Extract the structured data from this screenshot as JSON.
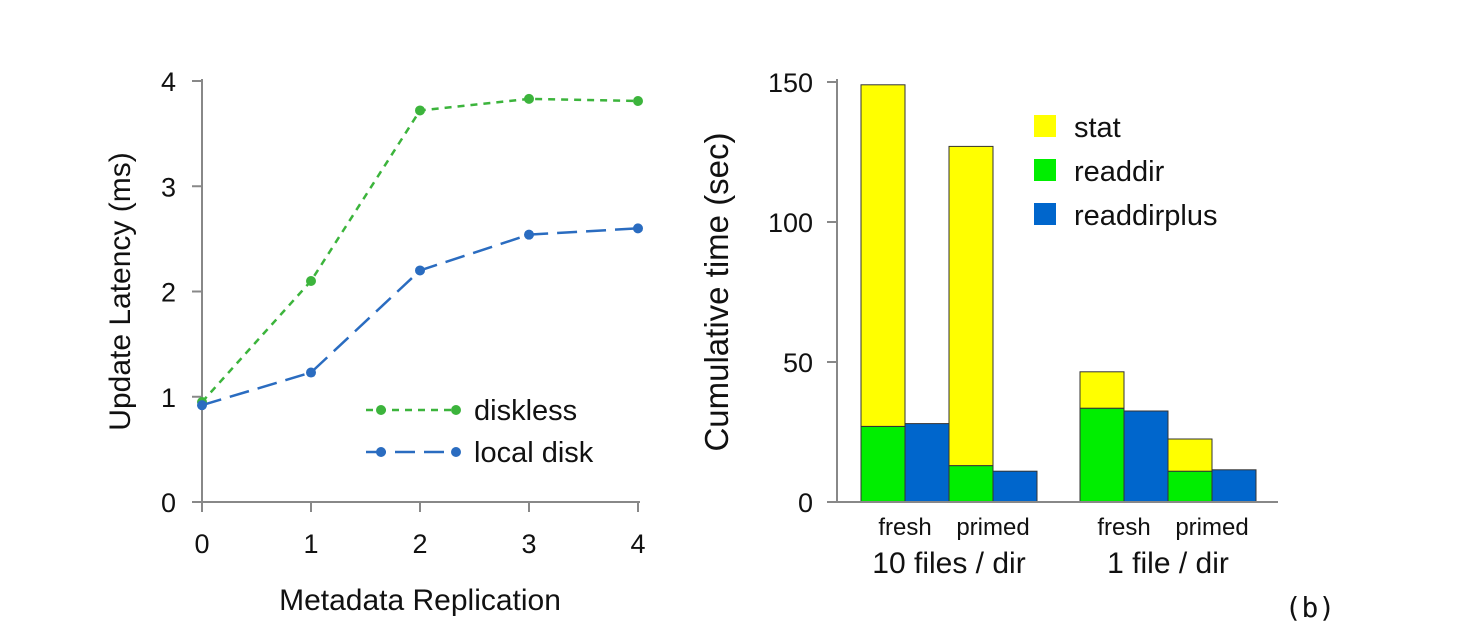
{
  "panel_label": "(b)",
  "chart_data": [
    {
      "type": "line",
      "xlabel": "Metadata Replication",
      "ylabel": "Update Latency (ms)",
      "x": [
        0,
        1,
        2,
        3,
        4
      ],
      "xlim": [
        0,
        4
      ],
      "ylim": [
        0,
        4
      ],
      "xticks": [
        "0",
        "1",
        "2",
        "3",
        "4"
      ],
      "yticks": [
        "0",
        "1",
        "2",
        "3",
        "4"
      ],
      "grid": false,
      "legend_position": "bottom-right",
      "series": [
        {
          "name": "diskless",
          "values": [
            0.95,
            2.1,
            3.72,
            3.83,
            3.81
          ],
          "color": "#3cb43c",
          "dash": "short-dash"
        },
        {
          "name": "local disk",
          "values": [
            0.92,
            1.23,
            2.2,
            2.54,
            2.6
          ],
          "color": "#2a6cc0",
          "dash": "long-dash"
        }
      ]
    },
    {
      "type": "bar",
      "stacked": true,
      "ylabel": "Cumulative time (sec)",
      "ylim": [
        0,
        150
      ],
      "yticks": [
        "0",
        "50",
        "100",
        "150"
      ],
      "grid": false,
      "legend_position": "top-right",
      "legend": [
        {
          "name": "stat",
          "color": "#ffff00"
        },
        {
          "name": "readdir",
          "color": "#00ee00"
        },
        {
          "name": "readdirplus",
          "color": "#0066cc"
        }
      ],
      "groups": [
        {
          "label": "10 files / dir",
          "sublabels": [
            "fresh",
            "primed"
          ]
        },
        {
          "label": "1 file / dir",
          "sublabels": [
            "fresh",
            "primed"
          ]
        }
      ],
      "bars": [
        {
          "group": 0,
          "condition": "fresh",
          "type": "readdir",
          "readdir": 27,
          "stat": 122
        },
        {
          "group": 0,
          "condition": "fresh",
          "type": "readdirplus",
          "readdirplus": 28
        },
        {
          "group": 0,
          "condition": "primed",
          "type": "readdir",
          "readdir": 13,
          "stat": 114
        },
        {
          "group": 0,
          "condition": "primed",
          "type": "readdirplus",
          "readdirplus": 11
        },
        {
          "group": 1,
          "condition": "fresh",
          "type": "readdir",
          "readdir": 33.5,
          "stat": 13
        },
        {
          "group": 1,
          "condition": "fresh",
          "type": "readdirplus",
          "readdirplus": 32.5
        },
        {
          "group": 1,
          "condition": "primed",
          "type": "readdir",
          "readdir": 11,
          "stat": 11.5
        },
        {
          "group": 1,
          "condition": "primed",
          "type": "readdirplus",
          "readdirplus": 11.5
        }
      ]
    }
  ]
}
